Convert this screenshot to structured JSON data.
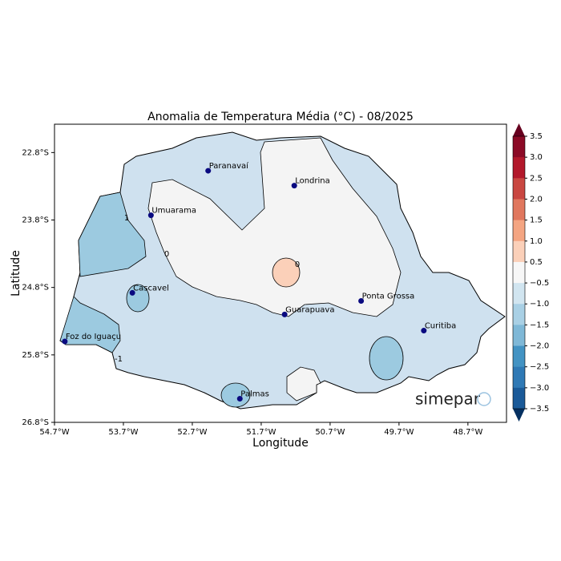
{
  "map": {
    "title": "Anomalia de Temperatura Média (°C) - 08/2025",
    "xlabel": "Longitude",
    "ylabel": "Latitude",
    "xlim": [
      -54.7,
      -48.14
    ],
    "ylim": [
      -26.8,
      -22.38
    ],
    "xticks": [
      {
        "value": -54.7,
        "label": "54.7°W"
      },
      {
        "value": -53.7,
        "label": "53.7°W"
      },
      {
        "value": -52.7,
        "label": "52.7°W"
      },
      {
        "value": -51.7,
        "label": "51.7°W"
      },
      {
        "value": -50.7,
        "label": "50.7°W"
      },
      {
        "value": -49.7,
        "label": "49.7°W"
      },
      {
        "value": -48.7,
        "label": "48.7°W"
      }
    ],
    "yticks": [
      {
        "value": -22.8,
        "label": "22.8°S"
      },
      {
        "value": -23.8,
        "label": "23.8°S"
      },
      {
        "value": -24.8,
        "label": "24.8°S"
      },
      {
        "value": -25.8,
        "label": "25.8°S"
      },
      {
        "value": -26.8,
        "label": "26.8°S"
      }
    ],
    "cities": [
      {
        "name": "Paranavaí",
        "lon": -52.47,
        "lat": -23.07
      },
      {
        "name": "Umuarama",
        "lon": -53.3,
        "lat": -23.73
      },
      {
        "name": "Londrina",
        "lon": -51.22,
        "lat": -23.29
      },
      {
        "name": "Cascavel",
        "lon": -53.57,
        "lat": -24.88
      },
      {
        "name": "Foz do Iguaçu",
        "lon": -54.55,
        "lat": -25.6
      },
      {
        "name": "Guarapuava",
        "lon": -51.36,
        "lat": -25.2
      },
      {
        "name": "Ponta Grossa",
        "lon": -50.25,
        "lat": -25.0
      },
      {
        "name": "Curitiba",
        "lon": -49.34,
        "lat": -25.44
      },
      {
        "name": "Palmas",
        "lon": -52.01,
        "lat": -26.45
      }
    ],
    "contour_labels": [
      "0",
      "0",
      "1",
      "-1"
    ],
    "colorbar": {
      "labels": [
        "3.5",
        "3.0",
        "2.5",
        "2.0",
        "1.5",
        "1.0",
        "0.5",
        "−0.5",
        "−1.0",
        "−1.5",
        "−2.0",
        "−2.5",
        "−3.0",
        "−3.5"
      ],
      "colors": [
        "#67001f",
        "#8b0a26",
        "#b2182b",
        "#c94741",
        "#e0775e",
        "#f4a582",
        "#fbd0b9",
        "#f7f7f7",
        "#d1e5f0",
        "#a9d0e5",
        "#7fb8d7",
        "#4393c3",
        "#2f79b5",
        "#1a5a99",
        "#053061"
      ]
    },
    "logo": "simepar"
  }
}
